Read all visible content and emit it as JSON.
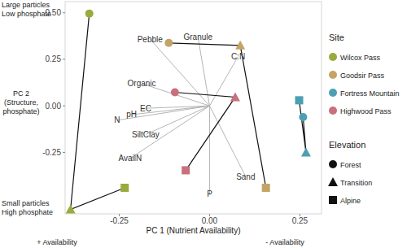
{
  "chart_data": {
    "type": "scatter",
    "x_label": "PC 1 (Nutrient Availability)",
    "y_label": [
      "PC 2",
      "(Structure,",
      "phosphate)"
    ],
    "y_high_note": [
      "Large particles",
      "Low phosphate"
    ],
    "y_low_note": [
      "Small particles",
      "High phosphate"
    ],
    "x_low_note": "+ Availability",
    "x_high_note": "- Availability",
    "xlim": [
      -0.4,
      0.31
    ],
    "ylim": [
      -0.58,
      0.56
    ],
    "xticks": [
      {
        "value": -0.25,
        "label": "-0.25"
      },
      {
        "value": 0,
        "label": "0.00"
      },
      {
        "value": 0.25,
        "label": "0.25"
      }
    ],
    "yticks": [
      {
        "value": -0.25,
        "label": "-0.25"
      },
      {
        "value": 0,
        "label": "0.00"
      },
      {
        "value": 0.25,
        "label": "0.25"
      },
      {
        "value": 0.5,
        "label": "0.50"
      }
    ],
    "legend": "right",
    "legend_title": "Site",
    "elevation_title": "Elevation",
    "elevations": [
      {
        "name": "Forest",
        "marker": "circle"
      },
      {
        "name": "Transition",
        "marker": "triangle"
      },
      {
        "name": "Alpine",
        "marker": "square"
      }
    ],
    "line_style": "solid",
    "series": [
      {
        "name": "Wilcox Pass",
        "color": "#98ab3c",
        "x": [
          -0.333,
          -0.385,
          -0.235
        ],
        "values": [
          0.496,
          -0.556,
          -0.44
        ]
      },
      {
        "name": "Goodsir Pass",
        "color": "#c4a466",
        "x": [
          -0.113,
          0.085,
          0.156
        ],
        "values": [
          0.338,
          0.325,
          -0.44
        ]
      },
      {
        "name": "Fortress Mountain",
        "color": "#4d9fb2",
        "x": [
          0.259,
          0.267,
          0.248
        ],
        "values": [
          -0.06,
          -0.25,
          0.03
        ]
      },
      {
        "name": "Highwood Pass",
        "color": "#c8707d",
        "x": [
          -0.096,
          0.071,
          -0.066
        ],
        "values": [
          0.073,
          0.047,
          -0.346
        ]
      }
    ],
    "loadings": [
      {
        "name": "Pebble",
        "x": -0.165,
        "y": 0.359
      },
      {
        "name": "Granule",
        "x": -0.032,
        "y": 0.368
      },
      {
        "name": "C:N",
        "x": 0.079,
        "y": 0.265
      },
      {
        "name": "Organic",
        "x": -0.188,
        "y": 0.12
      },
      {
        "name": "EC",
        "x": -0.177,
        "y": -0.013
      },
      {
        "name": "pH",
        "x": -0.216,
        "y": -0.047
      },
      {
        "name": "N",
        "x": -0.256,
        "y": -0.077
      },
      {
        "name": "SiltClay",
        "x": -0.177,
        "y": -0.154
      },
      {
        "name": "AvailN",
        "x": -0.22,
        "y": -0.282
      },
      {
        "name": "Sand",
        "x": 0.1,
        "y": -0.38
      },
      {
        "name": "P",
        "x": 0.0,
        "y": -0.474
      }
    ]
  }
}
